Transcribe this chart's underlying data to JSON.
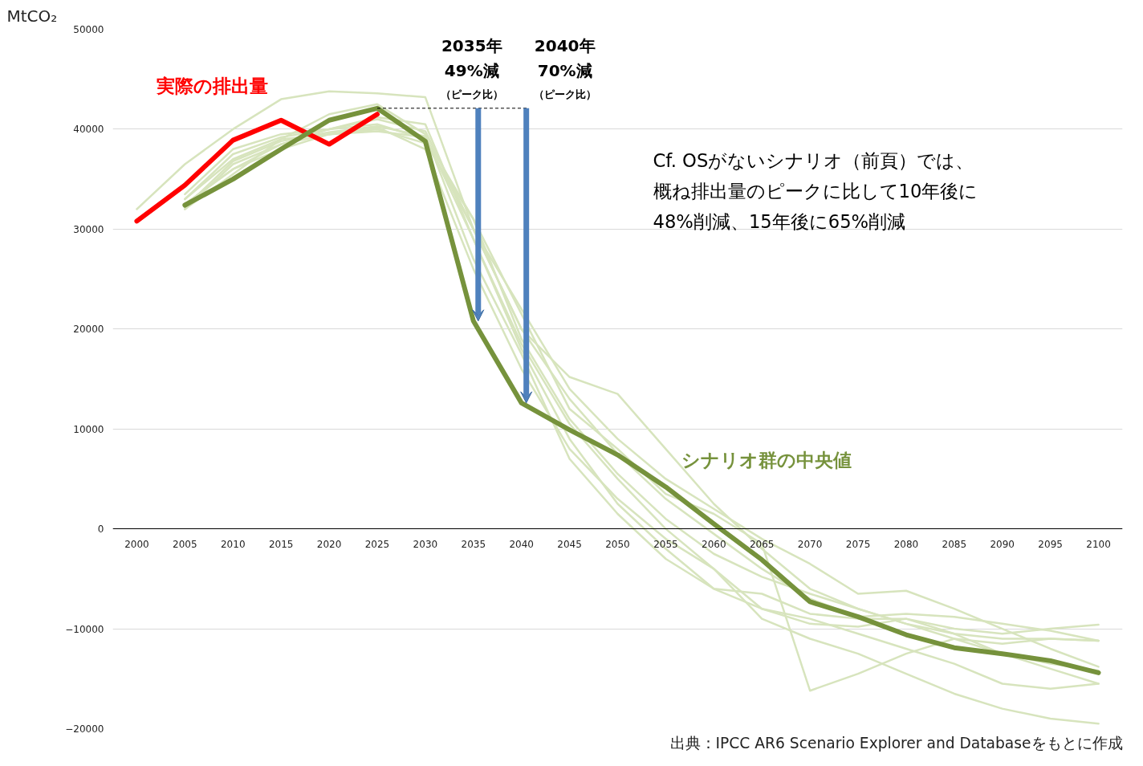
{
  "chart_data": {
    "type": "line",
    "xlim": [
      1997.5,
      2102.5
    ],
    "xticks": [
      2000,
      2005,
      2010,
      2015,
      2020,
      2025,
      2030,
      2035,
      2040,
      2045,
      2050,
      2055,
      2060,
      2065,
      2070,
      2075,
      2080,
      2085,
      2090,
      2095,
      2100
    ],
    "ylim": [
      -20000,
      50000
    ],
    "yticks": [
      -20000,
      -10000,
      0,
      10000,
      20000,
      30000,
      40000,
      50000
    ],
    "ylabel": "MtCO₂",
    "grid": "y",
    "series": [
      {
        "color": "#d7e4bd",
        "x": [
          2000,
          2005,
          2010,
          2015,
          2020,
          2025,
          2030,
          2035,
          2040,
          2045,
          2050,
          2055,
          2060,
          2065,
          2070,
          2075,
          2080,
          2085,
          2090,
          2095,
          2100
        ],
        "values": [
          32000,
          36500,
          40000,
          43000,
          43800,
          43600,
          43200,
          30000,
          20000,
          15200,
          13500,
          8000,
          2500,
          -2000,
          -6000,
          -8000,
          -9500,
          -10500,
          -11000,
          -11000,
          -11200
        ]
      },
      {
        "color": "#d7e4bd",
        "x": [
          2005,
          2010,
          2015,
          2020,
          2025,
          2030,
          2035,
          2040,
          2045,
          2050,
          2055,
          2060,
          2065,
          2070,
          2075,
          2080,
          2085,
          2090,
          2095,
          2100
        ],
        "values": [
          33000,
          37000,
          39000,
          39500,
          39800,
          39200,
          31000,
          19000,
          11000,
          5500,
          1000,
          -2500,
          -4800,
          -6500,
          -8000,
          -9500,
          -11000,
          -12500,
          -13500,
          -14200
        ]
      },
      {
        "color": "#d7e4bd",
        "x": [
          2005,
          2010,
          2015,
          2020,
          2025,
          2030,
          2035,
          2040,
          2045,
          2050,
          2055,
          2060,
          2065,
          2070,
          2075,
          2080,
          2085,
          2090,
          2095,
          2100
        ],
        "values": [
          32500,
          36000,
          38500,
          40000,
          41200,
          40500,
          29000,
          18000,
          9000,
          2500,
          -2000,
          -6000,
          -8000,
          -9000,
          -10500,
          -12000,
          -13500,
          -15500,
          -16000,
          -15500
        ]
      },
      {
        "color": "#d7e4bd",
        "x": [
          2005,
          2010,
          2015,
          2020,
          2025,
          2030,
          2035,
          2040,
          2045,
          2050,
          2055,
          2060,
          2065,
          2070,
          2075,
          2080,
          2085,
          2090,
          2095,
          2100
        ],
        "values": [
          32000,
          35500,
          39000,
          41500,
          42500,
          39500,
          27000,
          17500,
          7000,
          1500,
          -3000,
          -6000,
          -6500,
          -8500,
          -9000,
          -9000,
          -10000,
          -10500,
          -10000,
          -9600
        ]
      },
      {
        "color": "#d7e4bd",
        "x": [
          2005,
          2010,
          2015,
          2020,
          2025,
          2030,
          2035,
          2040,
          2045,
          2050,
          2055,
          2060,
          2065,
          2070,
          2075,
          2080,
          2085,
          2090,
          2095,
          2100
        ],
        "values": [
          33500,
          38000,
          39500,
          40000,
          40500,
          39000,
          30000,
          22000,
          14000,
          9000,
          5000,
          2000,
          -1000,
          -3500,
          -6500,
          -6200,
          -8000,
          -10000,
          -12000,
          -13800
        ]
      },
      {
        "color": "#d7e4bd",
        "x": [
          2005,
          2010,
          2015,
          2020,
          2025,
          2030,
          2035,
          2040,
          2045,
          2050,
          2055,
          2060,
          2065,
          2070,
          2075,
          2080,
          2085,
          2090,
          2095,
          2100
        ],
        "values": [
          32000,
          36500,
          38500,
          39500,
          40000,
          38600,
          31000,
          21500,
          12000,
          8000,
          3500,
          1500,
          -1500,
          -16200,
          -14500,
          -12500,
          -11000,
          -11500,
          -11000,
          -11200
        ]
      },
      {
        "color": "#d7e4bd",
        "x": [
          2005,
          2010,
          2015,
          2020,
          2025,
          2030,
          2035,
          2040,
          2045,
          2050,
          2055,
          2060,
          2065,
          2070,
          2075,
          2080,
          2085,
          2090,
          2095,
          2100
        ],
        "values": [
          32500,
          36000,
          38000,
          39500,
          40200,
          38000,
          26000,
          16000,
          8000,
          3000,
          -1000,
          -4000,
          -8000,
          -9500,
          -9800,
          -9000,
          -10500,
          -12500,
          -14000,
          -15500
        ]
      },
      {
        "color": "#d7e4bd",
        "x": [
          2005,
          2010,
          2015,
          2020,
          2025,
          2030,
          2035,
          2040,
          2045,
          2050,
          2055,
          2060,
          2065,
          2070,
          2075,
          2080,
          2085,
          2090,
          2095,
          2100
        ],
        "values": [
          33000,
          37500,
          39200,
          40000,
          41000,
          39800,
          30000,
          20000,
          13000,
          7500,
          3000,
          -500,
          -4000,
          -7000,
          -8800,
          -8500,
          -8800,
          -9500,
          -10200,
          -11200
        ]
      },
      {
        "color": "#d7e4bd",
        "x": [
          2005,
          2010,
          2015,
          2020,
          2025,
          2030,
          2035,
          2040,
          2045,
          2050,
          2055,
          2060,
          2065,
          2070,
          2075,
          2080,
          2085,
          2090,
          2095,
          2100
        ],
        "values": [
          32200,
          36800,
          38800,
          39700,
          40300,
          39300,
          29000,
          18500,
          10500,
          5000,
          0,
          -4000,
          -9000,
          -11000,
          -12500,
          -14500,
          -16500,
          -18000,
          -19000,
          -19500
        ]
      },
      {
        "name": "実際の排出量",
        "color": "#ff0000",
        "x": [
          2000,
          2005,
          2010,
          2015,
          2020,
          2025
        ],
        "values": [
          30800,
          34400,
          38900,
          40900,
          38500,
          41500
        ]
      },
      {
        "name": "シナリオ群の中央値",
        "color": "#76923c",
        "x": [
          2005,
          2010,
          2015,
          2020,
          2025,
          2030,
          2035,
          2040,
          2045,
          2050,
          2055,
          2060,
          2065,
          2070,
          2075,
          2080,
          2085,
          2090,
          2095,
          2100
        ],
        "values": [
          32400,
          35000,
          38000,
          40900,
          42100,
          38800,
          20800,
          12600,
          9900,
          7400,
          4200,
          500,
          -3100,
          -7300,
          -8800,
          -10600,
          -11900,
          -12500,
          -13200,
          -14400
        ]
      }
    ],
    "annotations": [
      {
        "text": "2035年49%減（ピーク比）",
        "x": 2035,
        "y": 20800
      },
      {
        "text": "2040年70%減（ピーク比）",
        "x": 2040,
        "y": 12600
      },
      "Cf. OSがないシナリオ（前頁）では、概ね排出量のピークに比して10年後に48%削減、15年後に65%削減",
      "出典：IPCC AR6 Scenario Explorer and Databaseをもとに作成"
    ]
  }
}
